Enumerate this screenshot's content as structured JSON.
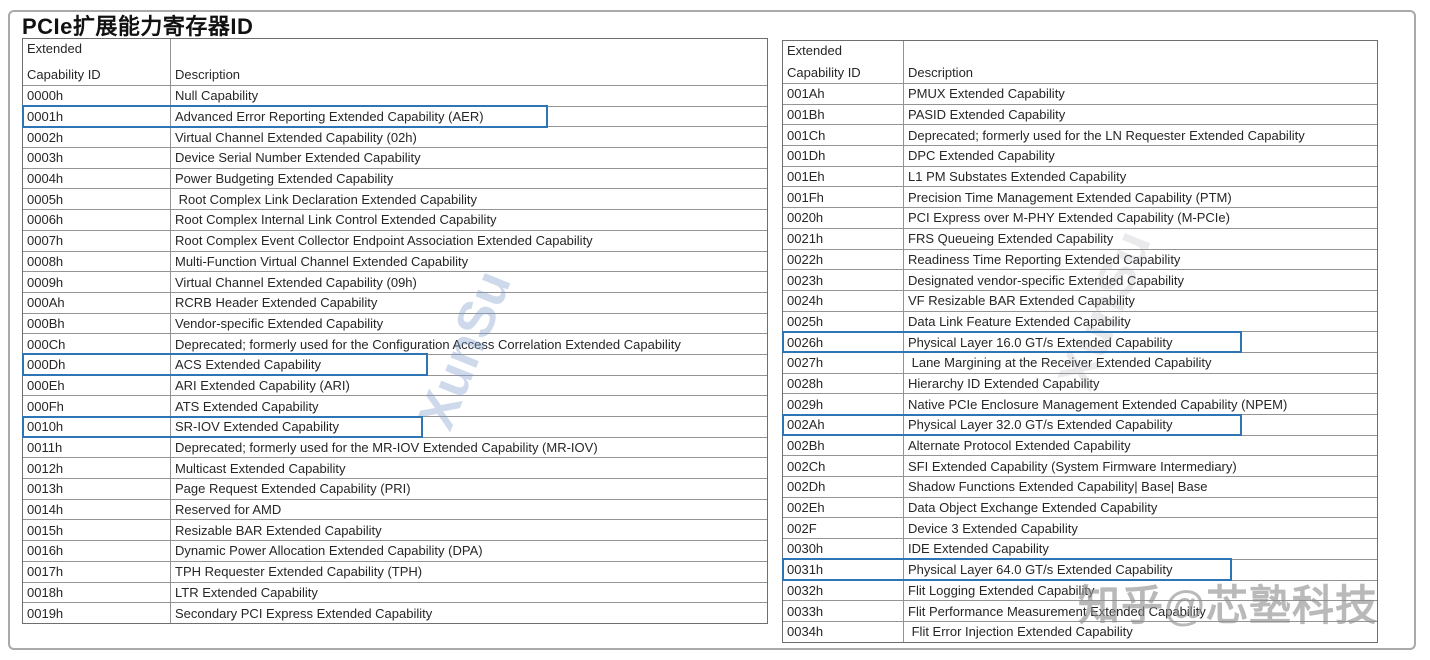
{
  "title": "PCIe扩展能力寄存器ID",
  "colors": {
    "highlight_border": "#2E75B6"
  },
  "watermarks": {
    "bottom_right": "知乎@芯塾科技",
    "diagonal_left": "XunSu",
    "diagonal_right": "XunSu"
  },
  "tables": {
    "left": {
      "header": {
        "id_line1": "Extended",
        "id_line2": "Capability ID",
        "desc": "Description"
      },
      "rows": [
        {
          "id": "0000h",
          "desc": "Null Capability"
        },
        {
          "id": "0001h",
          "desc": "Advanced Error Reporting Extended Capability (AER)",
          "highlighted": true,
          "highlight_width": 526
        },
        {
          "id": "0002h",
          "desc": "Virtual Channel Extended Capability (02h)"
        },
        {
          "id": "0003h",
          "desc": "Device Serial Number Extended Capability"
        },
        {
          "id": "0004h",
          "desc": "Power Budgeting Extended Capability"
        },
        {
          "id": "0005h",
          "desc": " Root Complex Link Declaration Extended Capability"
        },
        {
          "id": "0006h",
          "desc": "Root Complex Internal Link Control Extended Capability"
        },
        {
          "id": "0007h",
          "desc": "Root Complex Event Collector Endpoint Association Extended Capability"
        },
        {
          "id": "0008h",
          "desc": "Multi-Function Virtual Channel Extended Capability"
        },
        {
          "id": "0009h",
          "desc": "Virtual Channel Extended Capability (09h)"
        },
        {
          "id": "000Ah",
          "desc": "RCRB Header Extended Capability"
        },
        {
          "id": "000Bh",
          "desc": "Vendor-specific Extended Capability"
        },
        {
          "id": "000Ch",
          "desc": "Deprecated; formerly used for the Configuration Access Correlation Extended Capability"
        },
        {
          "id": "000Dh",
          "desc": "ACS Extended Capability",
          "highlighted": true,
          "highlight_width": 406
        },
        {
          "id": "000Eh",
          "desc": "ARI Extended Capability (ARI)"
        },
        {
          "id": "000Fh",
          "desc": "ATS Extended Capability"
        },
        {
          "id": "0010h",
          "desc": "SR-IOV Extended Capability",
          "highlighted": true,
          "highlight_width": 401
        },
        {
          "id": "0011h",
          "desc": "Deprecated; formerly used for the MR-IOV Extended Capability (MR-IOV)"
        },
        {
          "id": "0012h",
          "desc": "Multicast Extended Capability"
        },
        {
          "id": "0013h",
          "desc": "Page Request Extended Capability (PRI)"
        },
        {
          "id": "0014h",
          "desc": "Reserved for AMD"
        },
        {
          "id": "0015h",
          "desc": "Resizable BAR Extended Capability"
        },
        {
          "id": "0016h",
          "desc": "Dynamic Power Allocation Extended Capability (DPA)"
        },
        {
          "id": "0017h",
          "desc": "TPH Requester Extended Capability (TPH)"
        },
        {
          "id": "0018h",
          "desc": "LTR Extended Capability"
        },
        {
          "id": "0019h",
          "desc": "Secondary PCI Express Extended Capability"
        }
      ]
    },
    "right": {
      "header": {
        "id_line1": "Extended",
        "id_line2": "Capability ID",
        "desc": "Description"
      },
      "rows": [
        {
          "id": "001Ah",
          "desc": "PMUX Extended Capability"
        },
        {
          "id": "001Bh",
          "desc": "PASID Extended Capability"
        },
        {
          "id": "001Ch",
          "desc": "Deprecated; formerly used for the LN Requester Extended Capability"
        },
        {
          "id": "001Dh",
          "desc": "DPC Extended Capability"
        },
        {
          "id": "001Eh",
          "desc": "L1 PM Substates Extended Capability"
        },
        {
          "id": "001Fh",
          "desc": "Precision Time Management Extended Capability (PTM)"
        },
        {
          "id": "0020h",
          "desc": "PCI Express over M-PHY Extended Capability (M-PCIe)"
        },
        {
          "id": "0021h",
          "desc": "FRS Queueing Extended Capability"
        },
        {
          "id": "0022h",
          "desc": "Readiness Time Reporting Extended Capability"
        },
        {
          "id": "0023h",
          "desc": "Designated vendor-specific Extended Capability"
        },
        {
          "id": "0024h",
          "desc": "VF Resizable BAR Extended Capability"
        },
        {
          "id": "0025h",
          "desc": "Data Link Feature Extended Capability"
        },
        {
          "id": "0026h",
          "desc": "Physical Layer 16.0 GT/s Extended Capability",
          "highlighted": true,
          "highlight_width": 460
        },
        {
          "id": "0027h",
          "desc": " Lane Margining at the Receiver Extended Capability"
        },
        {
          "id": "0028h",
          "desc": "Hierarchy ID Extended Capability"
        },
        {
          "id": "0029h",
          "desc": "Native PCIe Enclosure Management Extended Capability (NPEM)"
        },
        {
          "id": "002Ah",
          "desc": "Physical Layer 32.0 GT/s Extended Capability",
          "highlighted": true,
          "highlight_width": 460
        },
        {
          "id": "002Bh",
          "desc": "Alternate Protocol Extended Capability"
        },
        {
          "id": "002Ch",
          "desc": "SFI Extended Capability (System Firmware Intermediary)"
        },
        {
          "id": "002Dh",
          "desc": "Shadow Functions Extended Capability| Base| Base"
        },
        {
          "id": "002Eh",
          "desc": "Data Object Exchange Extended Capability"
        },
        {
          "id": "002F",
          "desc": "Device 3 Extended Capability"
        },
        {
          "id": "0030h",
          "desc": "IDE Extended Capability"
        },
        {
          "id": "0031h",
          "desc": "Physical Layer 64.0 GT/s Extended Capability",
          "highlighted": true,
          "highlight_width": 450
        },
        {
          "id": "0032h",
          "desc": "Flit Logging Extended Capability"
        },
        {
          "id": "0033h",
          "desc": "Flit Performance Measurement Extended Capability"
        },
        {
          "id": "0034h",
          "desc": " Flit Error Injection Extended Capability"
        }
      ]
    }
  }
}
